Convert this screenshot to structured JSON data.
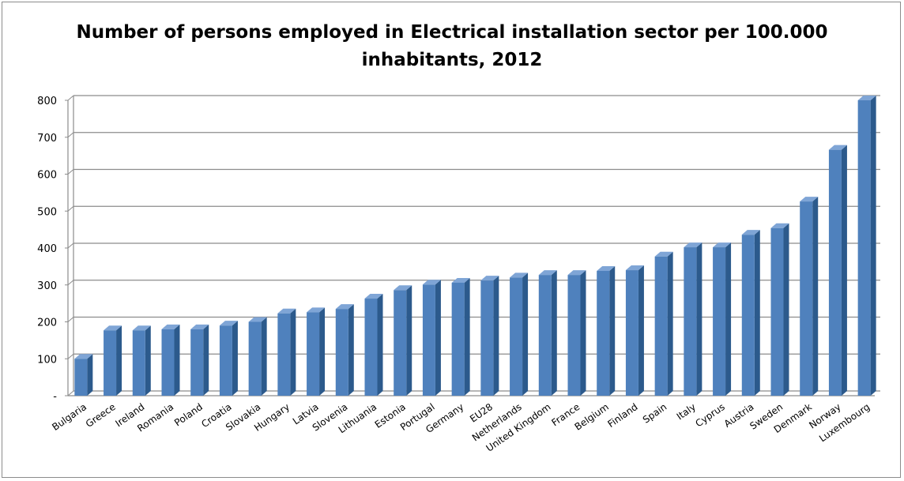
{
  "chart_data": {
    "type": "bar",
    "title": "Number of persons employed in Electrical installation sector per 100.000\ninhabitants, 2012",
    "xlabel": "",
    "ylabel": "",
    "categories": [
      "Bulgaria",
      "Greece",
      "Ireland",
      "Romania",
      "Poland",
      "Croatia",
      "Slovakia",
      "Hungary",
      "Latvia",
      "Slovenia",
      "Lithuania",
      "Estonia",
      "Portugal",
      "Germany",
      "EU28",
      "Netherlands",
      "United Kingdom",
      "France",
      "Belgium",
      "Finland",
      "Spain",
      "Italy",
      "Cyprus",
      "Austria",
      "Sweden",
      "Denmark",
      "Norway",
      "Luxembourg"
    ],
    "values": [
      100,
      177,
      177,
      180,
      180,
      190,
      200,
      223,
      226,
      235,
      263,
      286,
      301,
      306,
      312,
      320,
      327,
      327,
      338,
      340,
      377,
      402,
      402,
      436,
      454,
      526,
      666,
      800
    ],
    "ylim": [
      0,
      800
    ],
    "yticks": [
      0,
      100,
      200,
      300,
      400,
      500,
      600,
      700,
      800
    ],
    "ytick_labels": [
      "-",
      "100",
      "200",
      "300",
      "400",
      "500",
      "600",
      "700",
      "800"
    ],
    "grid": true,
    "legend": "none",
    "bar_style": "3d",
    "colors": {
      "bar_front": "#4f81bd",
      "bar_side": "#2c5a8c",
      "bar_top": "#7fa5d6",
      "gridline": "#8c8c8c"
    }
  }
}
